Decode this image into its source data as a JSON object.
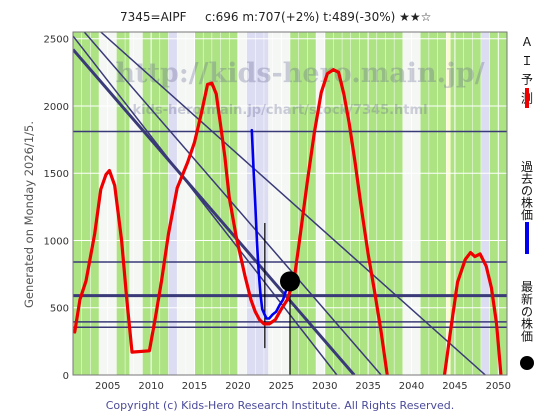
{
  "header": {
    "ticker_text": "7345=AIPF",
    "stats_text": "c:696 m:707(+2%) t:489(-30%) ★★☆"
  },
  "side_text": "Generated on Monday 2026/1/5.",
  "footer_text": "Copyright (c) Kids-Hero Research Institute. All Rights Reserved.",
  "watermark": {
    "url_text": "http://kids-hero.main.jp/",
    "sub_url_text": "kids-hero.main.jp/chart/stock/7345.html"
  },
  "legend": [
    {
      "label": "ＡＩ予測",
      "color": "#ee0000",
      "marker": "line"
    },
    {
      "label": "過去の株価",
      "color": "#0000ee",
      "marker": "line"
    },
    {
      "label": "最新の株価",
      "color": "#000000",
      "marker": "dot"
    }
  ],
  "colors": {
    "prediction": "#ee0000",
    "past_price": "#0000ee",
    "trendline": "#3a3a78",
    "band_green": "#aee384",
    "band_white": "#f4f7f4",
    "band_lavender": "#dcdcf2",
    "band_yellow": "#fbfbd0"
  },
  "chart_data": {
    "type": "line",
    "xlim": [
      2001,
      2051
    ],
    "ylim": [
      0,
      2550
    ],
    "x_ticks": [
      2005,
      2010,
      2015,
      2020,
      2025,
      2030,
      2035,
      2040,
      2045,
      2050
    ],
    "y_ticks": [
      0,
      500,
      1000,
      1500,
      2000,
      2500
    ],
    "grid": true,
    "legend_position": "right-vertical",
    "bands": [
      {
        "from": 2001,
        "to": 2004,
        "color": "green"
      },
      {
        "from": 2004,
        "to": 2006,
        "color": "white"
      },
      {
        "from": 2006,
        "to": 2007.5,
        "color": "green"
      },
      {
        "from": 2007.5,
        "to": 2009,
        "color": "white"
      },
      {
        "from": 2009,
        "to": 2012,
        "color": "green"
      },
      {
        "from": 2012,
        "to": 2013,
        "color": "lavender"
      },
      {
        "from": 2013,
        "to": 2015,
        "color": "white"
      },
      {
        "from": 2015,
        "to": 2020,
        "color": "green"
      },
      {
        "from": 2020,
        "to": 2021,
        "color": "white"
      },
      {
        "from": 2021,
        "to": 2023.5,
        "color": "lavender"
      },
      {
        "from": 2023.5,
        "to": 2026,
        "color": "white"
      },
      {
        "from": 2026,
        "to": 2029,
        "color": "green"
      },
      {
        "from": 2029,
        "to": 2030,
        "color": "white"
      },
      {
        "from": 2030,
        "to": 2039,
        "color": "green"
      },
      {
        "from": 2039,
        "to": 2041,
        "color": "white"
      },
      {
        "from": 2041,
        "to": 2044,
        "color": "green"
      },
      {
        "from": 2044,
        "to": 2044.5,
        "color": "yellow"
      },
      {
        "from": 2044.5,
        "to": 2048,
        "color": "green"
      },
      {
        "from": 2048,
        "to": 2049,
        "color": "lavender"
      },
      {
        "from": 2049,
        "to": 2051,
        "color": "green"
      }
    ],
    "horizontal_lines": [
      {
        "y": 1810,
        "weight": 1.5
      },
      {
        "y": 840,
        "weight": 1.5
      },
      {
        "y": 590,
        "weight": 3
      },
      {
        "y": 395,
        "weight": 1.5
      },
      {
        "y": 355,
        "weight": 1.5
      }
    ],
    "trend_lines": [
      {
        "x1": 2001,
        "y1": 2420,
        "x2": 2033.4,
        "y2": 0,
        "weight": 3
      },
      {
        "x1": 2001,
        "y1": 2520,
        "x2": 2031.4,
        "y2": 0,
        "weight": 1.5
      },
      {
        "x1": 2002.3,
        "y1": 2550,
        "x2": 2036.5,
        "y2": 0,
        "weight": 1.5
      },
      {
        "x1": 2004.2,
        "y1": 2550,
        "x2": 2048.5,
        "y2": 0,
        "weight": 1.5
      }
    ],
    "verticals": [
      {
        "x": 2023.1,
        "y_from": 200,
        "y_to": 1130,
        "color": "#000000"
      },
      {
        "x": 2026.0,
        "y_from": 0,
        "y_to": 696,
        "color": "#000000"
      }
    ],
    "series": [
      {
        "key": "prediction",
        "x": [
          2001.2,
          2001.8,
          2002.5,
          2003.5,
          2004.2,
          2004.8,
          2005.2,
          2005.8,
          2006.6,
          2007.2,
          2007.8,
          2009.8,
          2010.5,
          2011.2,
          2012.0,
          2013.0,
          2014.2,
          2015.0,
          2015.8,
          2016.5,
          2017.0,
          2017.5,
          2018.0,
          2018.5,
          2019.0,
          2019.8,
          2020.8,
          2021.5,
          2022.0,
          2022.5,
          2023.0,
          2023.6,
          2024.3,
          2025.0,
          2025.7,
          2026.5,
          2027.2,
          2028.0,
          2028.8,
          2029.6,
          2030.3,
          2031.0,
          2031.6,
          2032.2,
          2032.8,
          2033.5,
          2034.2,
          2035.0,
          2035.8,
          2036.5,
          2037.2
        ],
        "y": [
          320,
          560,
          700,
          1050,
          1380,
          1490,
          1520,
          1410,
          1000,
          560,
          170,
          180,
          430,
          700,
          1050,
          1390,
          1580,
          1730,
          1950,
          2160,
          2170,
          2090,
          1860,
          1620,
          1320,
          1030,
          740,
          560,
          470,
          410,
          380,
          380,
          410,
          490,
          560,
          720,
          1050,
          1440,
          1800,
          2100,
          2240,
          2270,
          2250,
          2090,
          1880,
          1580,
          1250,
          900,
          600,
          320,
          0
        ],
        "x2": [
          2043.8,
          2044.5,
          2045.3,
          2046.2,
          2046.8,
          2047.3,
          2047.9,
          2048.6,
          2049.2,
          2049.8,
          2050.3
        ],
        "y2": [
          0,
          330,
          690,
          860,
          910,
          880,
          900,
          810,
          650,
          380,
          0
        ]
      },
      {
        "key": "past_price",
        "x": [
          2021.6,
          2021.8,
          2022.0,
          2022.2,
          2022.4,
          2022.6,
          2022.8,
          2023.0,
          2023.3,
          2023.6,
          2024.0,
          2024.4,
          2024.8,
          2025.2,
          2025.5,
          2025.8,
          2026.0
        ],
        "y": [
          1820,
          1530,
          1270,
          980,
          760,
          600,
          490,
          460,
          420,
          420,
          450,
          470,
          520,
          560,
          620,
          660,
          696
        ]
      }
    ],
    "latest_point": {
      "x": 2026.0,
      "y": 696
    }
  }
}
